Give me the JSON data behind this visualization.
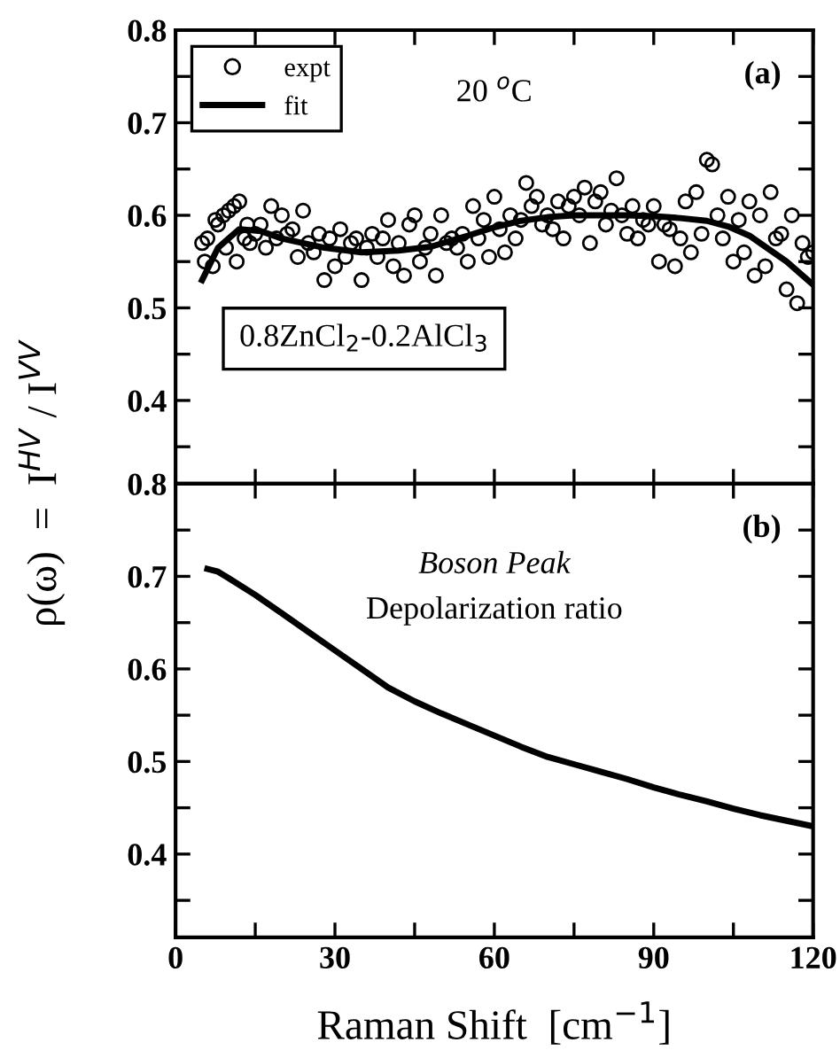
{
  "chart_data": [
    {
      "type": "scatter",
      "ylabel": "ρ(ω)  =  I$^{HV}$ / I$^{VV}$",
      "annotations": [
        "(a)",
        "20 $^{o}$C",
        "0.8ZnCl$_{2}$-0.2AlCl$_{3}$"
      ],
      "series": [
        {
          "name": "expt",
          "type": "scatter",
          "color": "#000000",
          "marker": "circle",
          "x": [
            5,
            5.5,
            6,
            7,
            7.5,
            8,
            9,
            9.5,
            10,
            11,
            11.5,
            12,
            13,
            13.5,
            14,
            15,
            16,
            17,
            18,
            19,
            20,
            21,
            22,
            23,
            24,
            25,
            26,
            27,
            28,
            29,
            30,
            31,
            32,
            33,
            34,
            35,
            36,
            37,
            38,
            39,
            40,
            41,
            42,
            43,
            44,
            45,
            46,
            47,
            48,
            49,
            50,
            51,
            52,
            53,
            54,
            55,
            56,
            57,
            58,
            59,
            60,
            61,
            62,
            63,
            64,
            65,
            66,
            67,
            68,
            69,
            70,
            71,
            72,
            73,
            74,
            75,
            76,
            77,
            78,
            79,
            80,
            81,
            82,
            83,
            84,
            85,
            86,
            87,
            88,
            89,
            90,
            91,
            92,
            93,
            94,
            95,
            96,
            97,
            98,
            99,
            100,
            101,
            102,
            103,
            104,
            105,
            106,
            107,
            108,
            109,
            110,
            111,
            112,
            113,
            114,
            115,
            116,
            117,
            118,
            119,
            120
          ],
          "values": [
            0.57,
            0.55,
            0.575,
            0.545,
            0.595,
            0.59,
            0.6,
            0.565,
            0.605,
            0.61,
            0.55,
            0.615,
            0.575,
            0.59,
            0.57,
            0.58,
            0.59,
            0.565,
            0.61,
            0.575,
            0.6,
            0.58,
            0.585,
            0.555,
            0.605,
            0.57,
            0.56,
            0.58,
            0.53,
            0.575,
            0.545,
            0.585,
            0.555,
            0.57,
            0.575,
            0.53,
            0.565,
            0.58,
            0.555,
            0.575,
            0.595,
            0.545,
            0.57,
            0.535,
            0.59,
            0.6,
            0.55,
            0.565,
            0.58,
            0.535,
            0.6,
            0.57,
            0.575,
            0.565,
            0.58,
            0.55,
            0.61,
            0.575,
            0.595,
            0.555,
            0.62,
            0.585,
            0.56,
            0.6,
            0.575,
            0.595,
            0.635,
            0.61,
            0.62,
            0.59,
            0.6,
            0.585,
            0.615,
            0.575,
            0.61,
            0.62,
            0.6,
            0.63,
            0.57,
            0.615,
            0.625,
            0.59,
            0.605,
            0.64,
            0.6,
            0.58,
            0.61,
            0.575,
            0.595,
            0.59,
            0.61,
            0.55,
            0.59,
            0.585,
            0.545,
            0.575,
            0.615,
            0.56,
            0.625,
            0.58,
            0.66,
            0.655,
            0.6,
            0.575,
            0.62,
            0.55,
            0.595,
            0.56,
            0.615,
            0.535,
            0.6,
            0.545,
            0.625,
            0.575,
            0.58,
            0.52,
            0.6,
            0.505,
            0.57,
            0.555,
            0.56
          ]
        },
        {
          "name": "fit",
          "type": "line",
          "color": "#000000",
          "line_style": "solid",
          "x": [
            5,
            8,
            12,
            16,
            20,
            28,
            35,
            42,
            48,
            55,
            60,
            65,
            70,
            75,
            80,
            85,
            90,
            95,
            100,
            104,
            108,
            112,
            115,
            118,
            120
          ],
          "values": [
            0.53,
            0.565,
            0.585,
            0.583,
            0.575,
            0.565,
            0.56,
            0.562,
            0.566,
            0.578,
            0.587,
            0.594,
            0.598,
            0.6,
            0.6,
            0.6,
            0.599,
            0.597,
            0.594,
            0.588,
            0.578,
            0.562,
            0.55,
            0.535,
            0.525
          ]
        }
      ],
      "xlim": [
        0,
        120
      ],
      "xticks": [
        0,
        {
          "value": 15,
          "label": null
        },
        30,
        {
          "value": 45,
          "label": null
        },
        60,
        {
          "value": 75,
          "label": null
        },
        90,
        {
          "value": 105,
          "label": null
        },
        120
      ],
      "ylim": [
        0.31,
        0.8
      ],
      "yticks": [
        {
          "value": 0.35,
          "label": null
        },
        0.4,
        {
          "value": 0.45,
          "label": null
        },
        0.5,
        {
          "value": 0.55,
          "label": null
        },
        0.6,
        {
          "value": 0.65,
          "label": null
        },
        0.7,
        {
          "value": 0.75,
          "label": null
        },
        0.8
      ],
      "tick_labels": "y",
      "legend": "top left",
      "grid": false
    },
    {
      "type": "line",
      "xlabel": "Raman Shift  [cm$^{−1}$]",
      "annotations": [
        "(b)",
        "Boson Peak",
        "Depolarization ratio"
      ],
      "series": [
        {
          "color": "#000000",
          "line_style": "solid",
          "x": [
            6,
            8,
            10,
            15,
            20,
            25,
            30,
            35,
            40,
            45,
            50,
            55,
            60,
            65,
            70,
            75,
            80,
            85,
            90,
            95,
            100,
            105,
            110,
            115,
            120
          ],
          "values": [
            0.708,
            0.705,
            0.698,
            0.68,
            0.66,
            0.64,
            0.62,
            0.6,
            0.58,
            0.565,
            0.552,
            0.54,
            0.528,
            0.516,
            0.505,
            0.497,
            0.489,
            0.481,
            0.472,
            0.464,
            0.457,
            0.449,
            0.442,
            0.436,
            0.43
          ]
        }
      ],
      "xlim": [
        0,
        120
      ],
      "xticks": [
        0,
        {
          "value": 15,
          "label": null
        },
        30,
        {
          "value": 45,
          "label": null
        },
        60,
        {
          "value": 75,
          "label": null
        },
        90,
        {
          "value": 105,
          "label": null
        },
        120
      ],
      "ylim": [
        0.31,
        0.8
      ],
      "yticks": [
        {
          "value": 0.35,
          "label": null
        },
        0.4,
        {
          "value": 0.45,
          "label": null
        },
        0.5,
        {
          "value": 0.55,
          "label": null
        },
        0.6,
        {
          "value": 0.65,
          "label": null
        },
        0.7,
        {
          "value": 0.75,
          "label": null
        },
        0.8
      ],
      "grid": false
    }
  ]
}
